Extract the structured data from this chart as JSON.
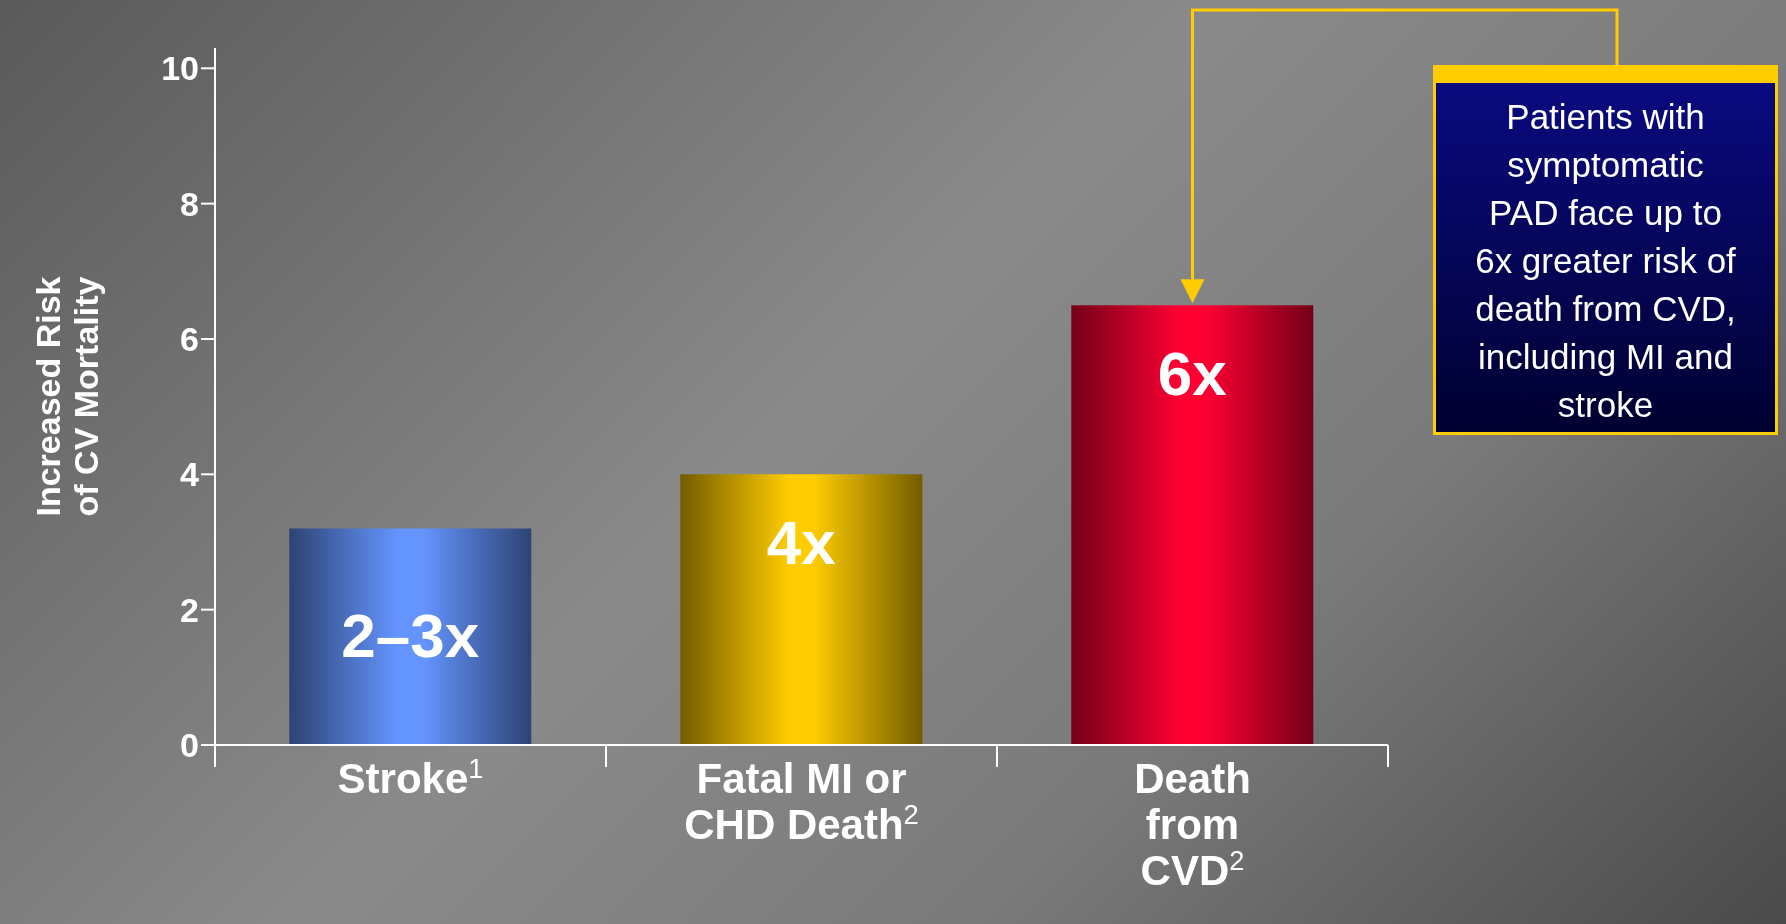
{
  "chart_data": {
    "type": "bar",
    "ylabel": "Increased Risk\nof CV Mortality",
    "categories": [
      "Stroke$^{1}$",
      "Fatal MI or\nCHD Death$^{2}$",
      "Death\nfrom\nCVD$^{2}$"
    ],
    "values": [
      3.2,
      4.0,
      6.5
    ],
    "colors": [
      "#6495ff",
      "#ffcc00",
      "#ff0033"
    ],
    "value_labels": [
      "2–3x",
      "4x",
      "6x"
    ],
    "ylim": [
      0,
      10.3
    ],
    "yticks": [
      0,
      2,
      4,
      6,
      8,
      10
    ],
    "grid": false,
    "legend": false,
    "annotations": [
      "Patients with symptomatic PAD face up to 6x greater risk of death from CVD, including MI and stroke"
    ]
  }
}
